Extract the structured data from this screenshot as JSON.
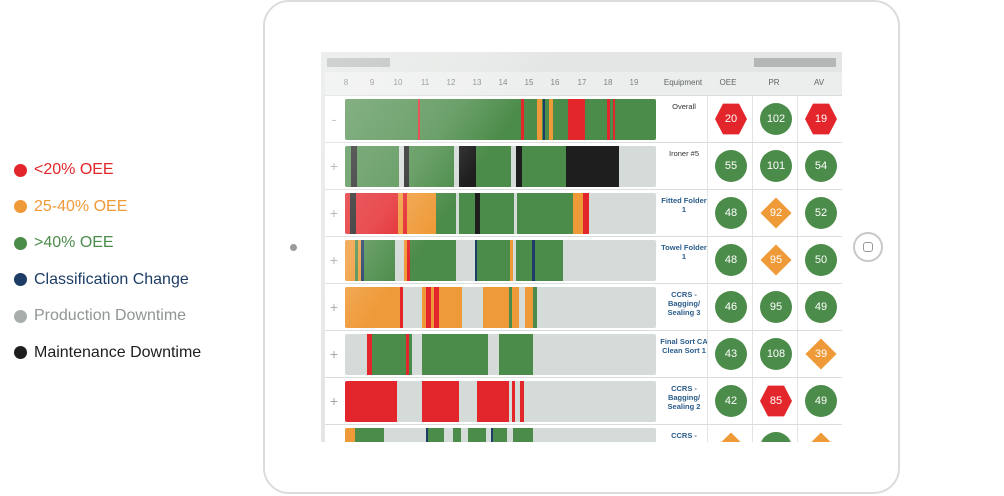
{
  "colors": {
    "red": "#e3262b",
    "orange": "#ef9a38",
    "green": "#4c8c4a",
    "blue": "#1d3d66",
    "gray": "#a7aeac",
    "black": "#1e1e1e",
    "track": "#d5dbd9",
    "equipment_dark": "#333333",
    "equipment_link": "#2a5c8a"
  },
  "legend": [
    {
      "label": "<20% OEE",
      "color": "#e3262b",
      "text_color": "#e3262b"
    },
    {
      "label": "25-40% OEE",
      "color": "#ef9a38",
      "text_color": "#ef9a38"
    },
    {
      "label": ">40% OEE",
      "color": "#4c8c4a",
      "text_color": "#4c8c4a"
    },
    {
      "label": "Classification Change",
      "color": "#1d3d66",
      "text_color": "#1d3d66"
    },
    {
      "label": "Production Downtime",
      "color": "#a7aeac",
      "text_color": "#8f9694"
    },
    {
      "label": "Maintenance Downtime",
      "color": "#1e1e1e",
      "text_color": "#1e1e1e"
    }
  ],
  "header": {
    "hours": [
      "8",
      "9",
      "10",
      "11",
      "12",
      "13",
      "14",
      "15",
      "16",
      "17",
      "18",
      "19"
    ],
    "equipment": "Equipment",
    "oee": "OEE",
    "pr": "PR",
    "av": "AV"
  },
  "rows": [
    {
      "expander": "-",
      "equipment": "Overall",
      "equipment_style": "dark",
      "oee": {
        "value": "20",
        "shape": "hex",
        "color": "red"
      },
      "pr": {
        "value": "102",
        "shape": "circle",
        "color": "green"
      },
      "av": {
        "value": "19",
        "shape": "hex",
        "color": "red"
      },
      "segments": [
        {
          "start": 0.0,
          "end": 100.0,
          "color": "green"
        },
        {
          "start": 23.6,
          "end": 24.2,
          "color": "red"
        },
        {
          "start": 56.6,
          "end": 57.6,
          "color": "red"
        },
        {
          "start": 61.6,
          "end": 63.2,
          "color": "orange"
        },
        {
          "start": 63.6,
          "end": 64.4,
          "color": "blue"
        },
        {
          "start": 65.6,
          "end": 66.8,
          "color": "orange"
        },
        {
          "start": 71.6,
          "end": 77.2,
          "color": "red"
        },
        {
          "start": 84.4,
          "end": 85.2,
          "color": "red"
        },
        {
          "start": 86.2,
          "end": 86.8,
          "color": "red"
        }
      ]
    },
    {
      "expander": "+",
      "equipment": "Ironer #5",
      "equipment_style": "dark",
      "oee": {
        "value": "55",
        "shape": "circle",
        "color": "green"
      },
      "pr": {
        "value": "101",
        "shape": "circle",
        "color": "green"
      },
      "av": {
        "value": "54",
        "shape": "circle",
        "color": "green"
      },
      "segments": [
        {
          "start": 0.0,
          "end": 2.0,
          "color": "green"
        },
        {
          "start": 2.0,
          "end": 4.0,
          "color": "black"
        },
        {
          "start": 4.0,
          "end": 17.5,
          "color": "green"
        },
        {
          "start": 19.0,
          "end": 20.5,
          "color": "black"
        },
        {
          "start": 20.5,
          "end": 35.0,
          "color": "green"
        },
        {
          "start": 36.8,
          "end": 42.0,
          "color": "black"
        },
        {
          "start": 42.0,
          "end": 53.5,
          "color": "green"
        },
        {
          "start": 55.0,
          "end": 57.0,
          "color": "black"
        },
        {
          "start": 57.0,
          "end": 71.0,
          "color": "green"
        },
        {
          "start": 71.0,
          "end": 88.0,
          "color": "black"
        }
      ]
    },
    {
      "expander": "+",
      "equipment": "Fitted Folder 1",
      "equipment_style": "link",
      "oee": {
        "value": "48",
        "shape": "circle",
        "color": "green"
      },
      "pr": {
        "value": "92",
        "shape": "diamond",
        "color": "orange"
      },
      "av": {
        "value": "52",
        "shape": "circle",
        "color": "green"
      },
      "segments": [
        {
          "start": 0.0,
          "end": 1.6,
          "color": "red"
        },
        {
          "start": 1.6,
          "end": 3.6,
          "color": "black"
        },
        {
          "start": 3.6,
          "end": 17.0,
          "color": "red"
        },
        {
          "start": 17.0,
          "end": 18.8,
          "color": "orange"
        },
        {
          "start": 18.8,
          "end": 20.0,
          "color": "red"
        },
        {
          "start": 20.0,
          "end": 29.2,
          "color": "orange"
        },
        {
          "start": 29.2,
          "end": 35.8,
          "color": "green"
        },
        {
          "start": 36.8,
          "end": 41.8,
          "color": "green"
        },
        {
          "start": 41.8,
          "end": 43.4,
          "color": "black"
        },
        {
          "start": 43.4,
          "end": 54.2,
          "color": "green"
        },
        {
          "start": 55.4,
          "end": 73.4,
          "color": "green"
        },
        {
          "start": 73.4,
          "end": 76.6,
          "color": "orange"
        },
        {
          "start": 76.6,
          "end": 78.4,
          "color": "red"
        }
      ]
    },
    {
      "expander": "+",
      "equipment": "Towel Folder 1",
      "equipment_style": "link",
      "oee": {
        "value": "48",
        "shape": "circle",
        "color": "green"
      },
      "pr": {
        "value": "95",
        "shape": "diamond",
        "color": "orange"
      },
      "av": {
        "value": "50",
        "shape": "circle",
        "color": "green"
      },
      "segments": [
        {
          "start": 0.0,
          "end": 3.2,
          "color": "orange"
        },
        {
          "start": 3.2,
          "end": 4.2,
          "color": "green"
        },
        {
          "start": 4.2,
          "end": 5.2,
          "color": "orange"
        },
        {
          "start": 5.2,
          "end": 6.2,
          "color": "blue"
        },
        {
          "start": 6.2,
          "end": 16.0,
          "color": "green"
        },
        {
          "start": 19.0,
          "end": 20.0,
          "color": "orange"
        },
        {
          "start": 20.0,
          "end": 20.8,
          "color": "red"
        },
        {
          "start": 20.8,
          "end": 35.8,
          "color": "green"
        },
        {
          "start": 41.8,
          "end": 42.4,
          "color": "blue"
        },
        {
          "start": 42.4,
          "end": 53.0,
          "color": "green"
        },
        {
          "start": 53.0,
          "end": 54.0,
          "color": "orange"
        },
        {
          "start": 55.0,
          "end": 60.2,
          "color": "green"
        },
        {
          "start": 60.2,
          "end": 61.0,
          "color": "blue"
        },
        {
          "start": 61.0,
          "end": 70.0,
          "color": "green"
        }
      ]
    },
    {
      "expander": "+",
      "equipment": "CCRS - Bagging/ Sealing 3",
      "equipment_style": "link",
      "oee": {
        "value": "46",
        "shape": "circle",
        "color": "green"
      },
      "pr": {
        "value": "95",
        "shape": "circle",
        "color": "green"
      },
      "av": {
        "value": "49",
        "shape": "circle",
        "color": "green"
      },
      "segments": [
        {
          "start": 0.0,
          "end": 17.6,
          "color": "orange"
        },
        {
          "start": 17.6,
          "end": 18.8,
          "color": "red"
        },
        {
          "start": 24.6,
          "end": 26.0,
          "color": "orange"
        },
        {
          "start": 26.0,
          "end": 27.8,
          "color": "red"
        },
        {
          "start": 27.8,
          "end": 28.6,
          "color": "orange"
        },
        {
          "start": 28.6,
          "end": 30.2,
          "color": "red"
        },
        {
          "start": 30.2,
          "end": 37.6,
          "color": "orange"
        },
        {
          "start": 44.4,
          "end": 52.8,
          "color": "orange"
        },
        {
          "start": 52.8,
          "end": 54.0,
          "color": "green"
        },
        {
          "start": 53.6,
          "end": 55.8,
          "color": "orange"
        },
        {
          "start": 58.0,
          "end": 60.4,
          "color": "orange"
        },
        {
          "start": 60.4,
          "end": 61.8,
          "color": "green"
        }
      ]
    },
    {
      "expander": "+",
      "equipment": "Final Sort CA Clean Sort 1",
      "equipment_style": "link",
      "oee": {
        "value": "43",
        "shape": "circle",
        "color": "green"
      },
      "pr": {
        "value": "108",
        "shape": "circle",
        "color": "green"
      },
      "av": {
        "value": "39",
        "shape": "diamond",
        "color": "orange"
      },
      "segments": [
        {
          "start": 7.0,
          "end": 8.8,
          "color": "red"
        },
        {
          "start": 8.8,
          "end": 19.6,
          "color": "green"
        },
        {
          "start": 19.6,
          "end": 20.6,
          "color": "red"
        },
        {
          "start": 20.6,
          "end": 21.6,
          "color": "green"
        },
        {
          "start": 24.6,
          "end": 46.0,
          "color": "green"
        },
        {
          "start": 49.6,
          "end": 60.4,
          "color": "green"
        }
      ]
    },
    {
      "expander": "+",
      "equipment": "CCRS - Bagging/ Sealing 2",
      "equipment_style": "link",
      "oee": {
        "value": "42",
        "shape": "circle",
        "color": "green"
      },
      "pr": {
        "value": "85",
        "shape": "hex",
        "color": "red"
      },
      "av": {
        "value": "49",
        "shape": "circle",
        "color": "green"
      },
      "segments": [
        {
          "start": 0.0,
          "end": 16.6,
          "color": "red"
        },
        {
          "start": 24.6,
          "end": 36.6,
          "color": "red"
        },
        {
          "start": 42.6,
          "end": 52.6,
          "color": "red"
        },
        {
          "start": 53.6,
          "end": 54.8,
          "color": "red"
        },
        {
          "start": 56.2,
          "end": 57.4,
          "color": "red"
        }
      ]
    },
    {
      "expander": "",
      "equipment": "CCRS -",
      "equipment_style": "link",
      "oee": {
        "value": "",
        "shape": "diamond",
        "color": "orange"
      },
      "pr": {
        "value": "",
        "shape": "circle",
        "color": "green"
      },
      "av": {
        "value": "",
        "shape": "diamond",
        "color": "orange"
      },
      "segments": [
        {
          "start": 0.0,
          "end": 3.2,
          "color": "orange"
        },
        {
          "start": 3.2,
          "end": 12.6,
          "color": "green"
        },
        {
          "start": 26.0,
          "end": 26.8,
          "color": "blue"
        },
        {
          "start": 26.8,
          "end": 31.8,
          "color": "green"
        },
        {
          "start": 34.6,
          "end": 37.4,
          "color": "green"
        },
        {
          "start": 39.4,
          "end": 45.4,
          "color": "green"
        },
        {
          "start": 46.8,
          "end": 47.6,
          "color": "blue"
        },
        {
          "start": 47.6,
          "end": 52.2,
          "color": "green"
        },
        {
          "start": 54.0,
          "end": 60.6,
          "color": "green"
        }
      ]
    }
  ]
}
